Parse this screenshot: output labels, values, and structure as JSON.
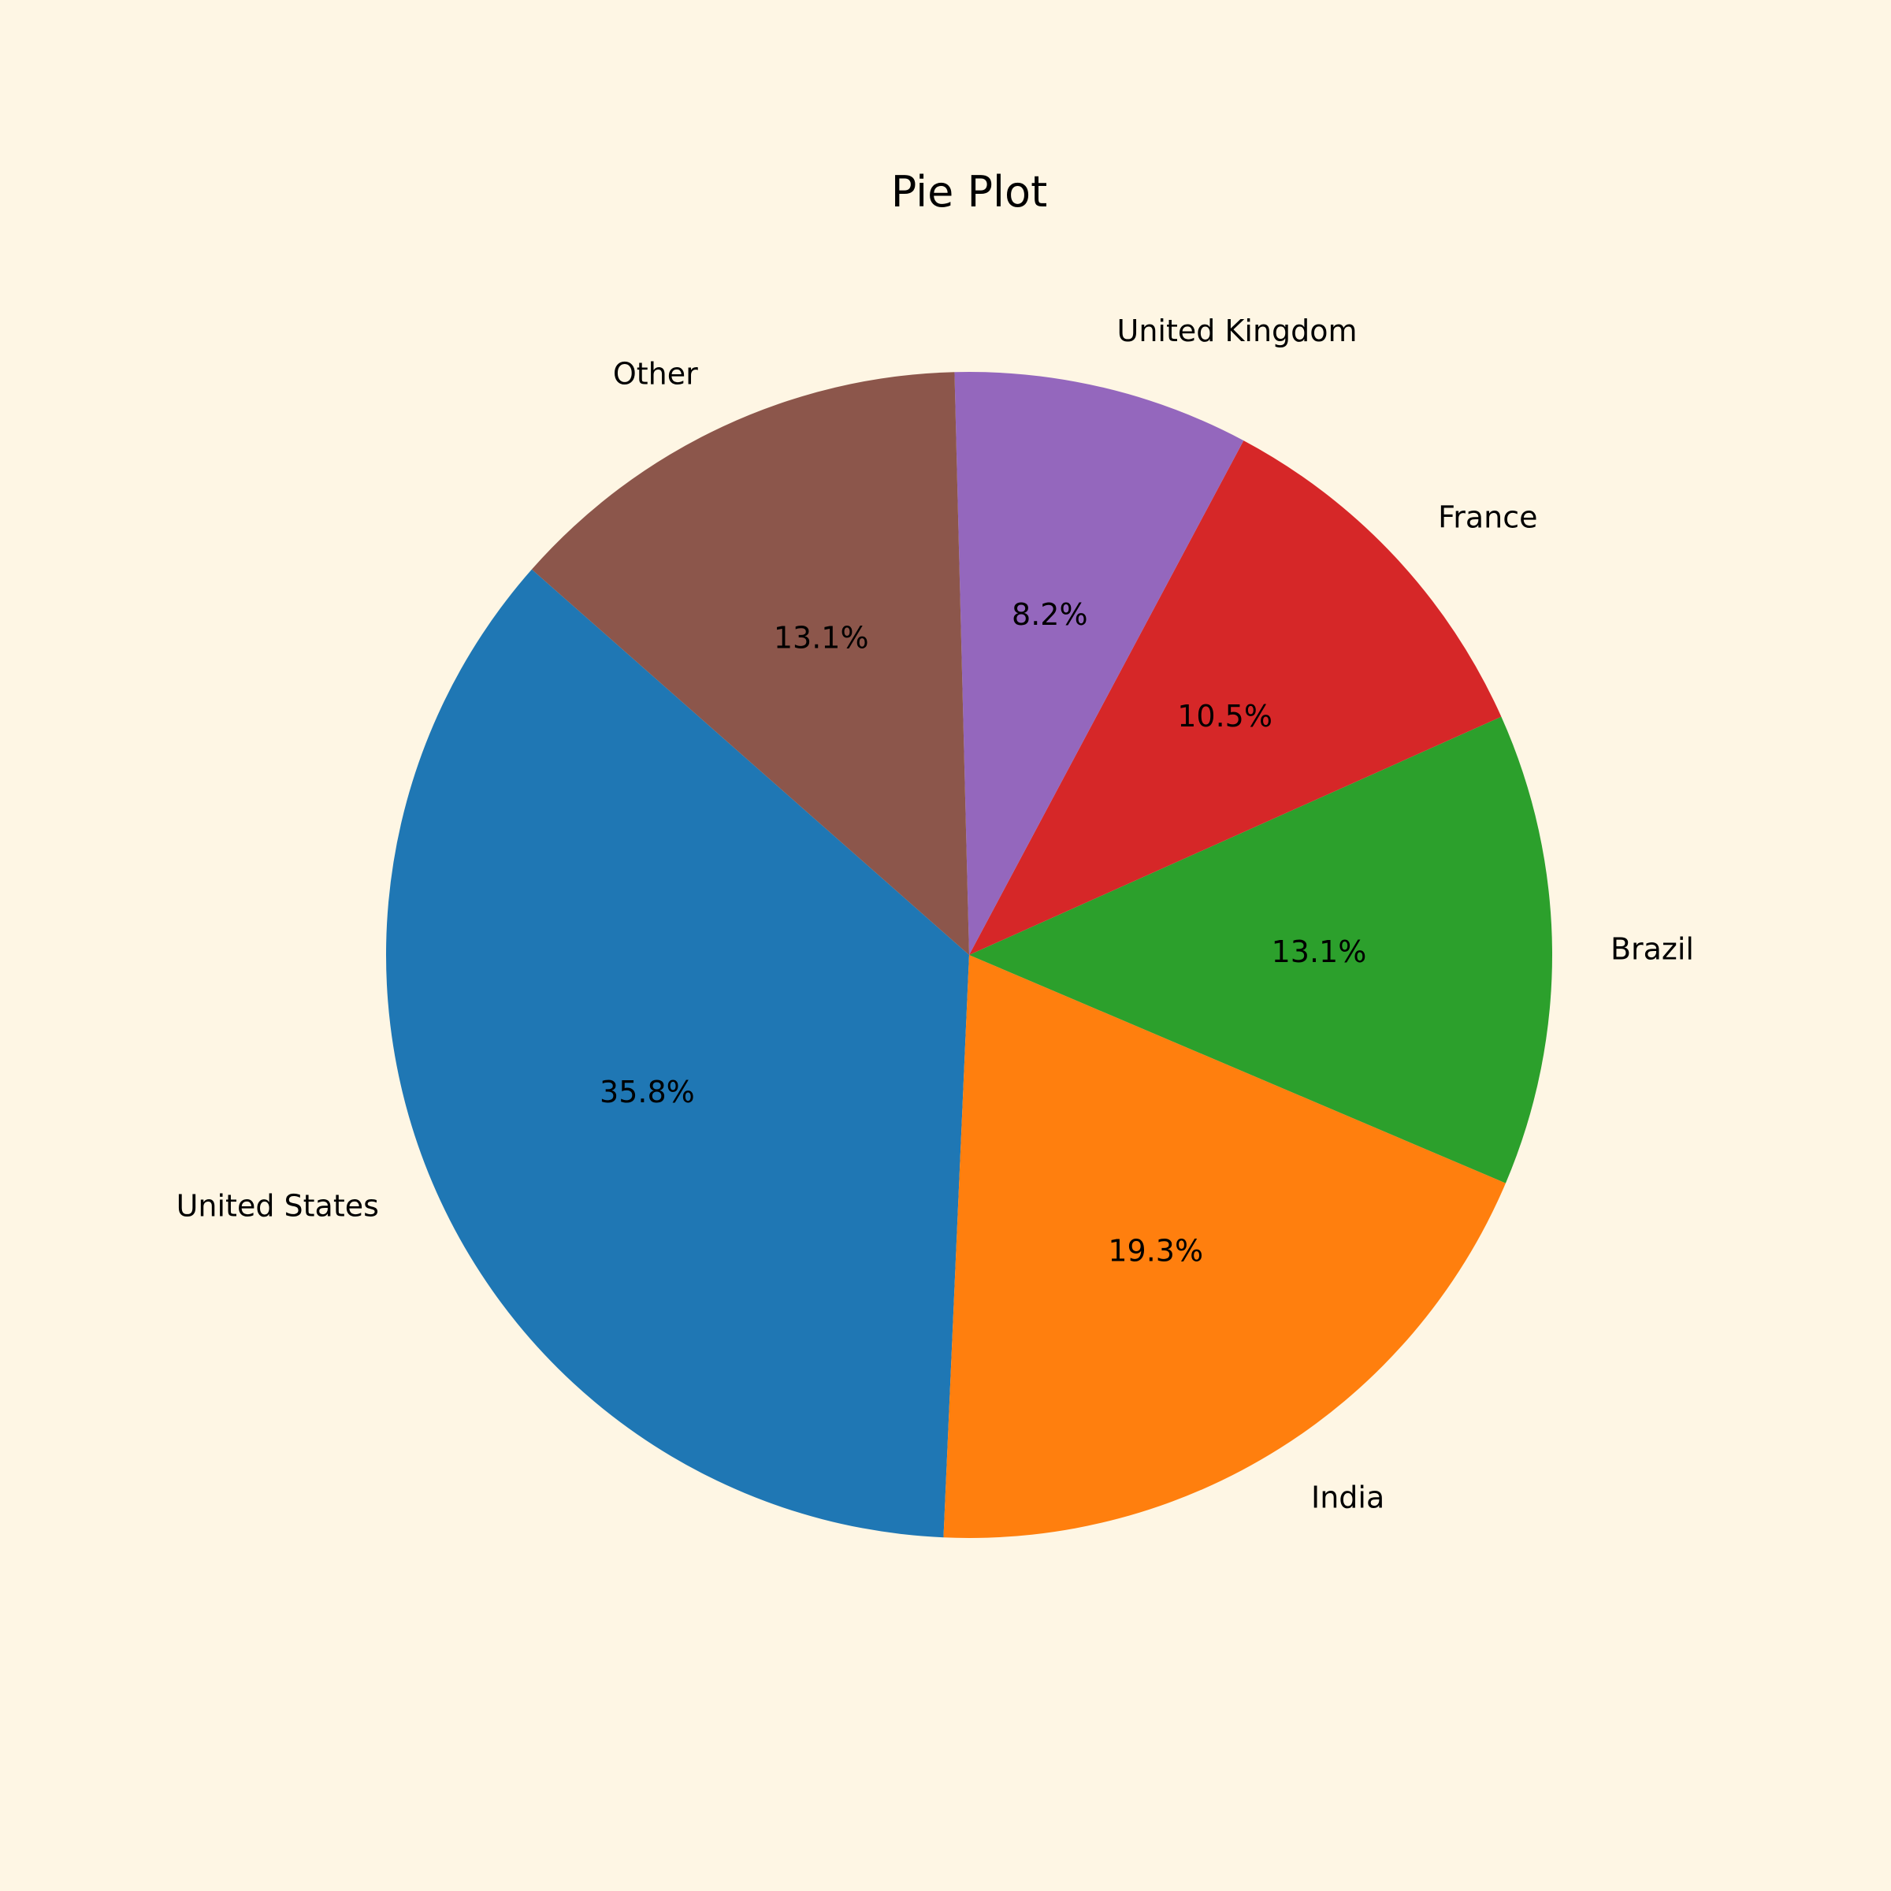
{
  "chart_data": {
    "type": "pie",
    "title": "Pie Plot",
    "background": "#FEF6E4",
    "slices": [
      {
        "label": "United States",
        "value": 35.8,
        "pct_label": "35.8%",
        "color": "#1F77B4"
      },
      {
        "label": "India",
        "value": 19.3,
        "pct_label": "19.3%",
        "color": "#FF7F0E"
      },
      {
        "label": "Brazil",
        "value": 13.1,
        "pct_label": "13.1%",
        "color": "#2CA02C"
      },
      {
        "label": "France",
        "value": 10.5,
        "pct_label": "10.5%",
        "color": "#D62728"
      },
      {
        "label": "United Kingdom",
        "value": 8.2,
        "pct_label": "8.2%",
        "color": "#9467BD"
      },
      {
        "label": "Other",
        "value": 13.1,
        "pct_label": "13.1%",
        "color": "#8C564B"
      }
    ]
  }
}
